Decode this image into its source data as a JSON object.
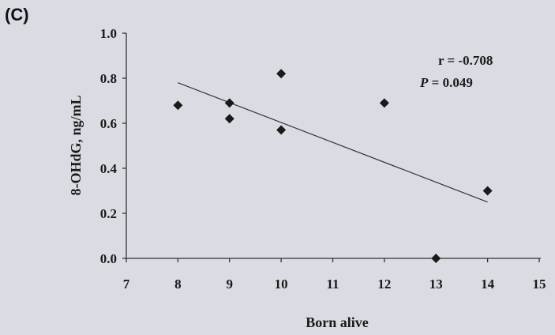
{
  "panel_label": "(C)",
  "chart_data": {
    "type": "scatter",
    "xlabel": "Born alive",
    "ylabel": "8-OHdG, ng/mL",
    "xlim": [
      7,
      15
    ],
    "ylim": [
      0.0,
      1.0
    ],
    "x_ticks": [
      "7",
      "8",
      "9",
      "10",
      "11",
      "12",
      "13",
      "14",
      "15"
    ],
    "y_ticks": [
      "0.0",
      "0.2",
      "0.4",
      "0.6",
      "0.8",
      "1.0"
    ],
    "points": [
      {
        "x": 8,
        "y": 0.68
      },
      {
        "x": 9,
        "y": 0.69
      },
      {
        "x": 9,
        "y": 0.62
      },
      {
        "x": 10,
        "y": 0.82
      },
      {
        "x": 10,
        "y": 0.57
      },
      {
        "x": 12,
        "y": 0.69
      },
      {
        "x": 13,
        "y": 0.0
      },
      {
        "x": 14,
        "y": 0.3
      }
    ],
    "trendline": {
      "x": [
        8,
        14
      ],
      "y": [
        0.78,
        0.25
      ]
    },
    "annotations": {
      "r_text": "r = -0.708",
      "p_symbol": "P",
      "p_value": " = 0.049"
    },
    "grid": false,
    "marker": "diamond",
    "colors": {
      "points": "#1a1a1a",
      "line": "#333333",
      "axis": "#333333"
    }
  }
}
